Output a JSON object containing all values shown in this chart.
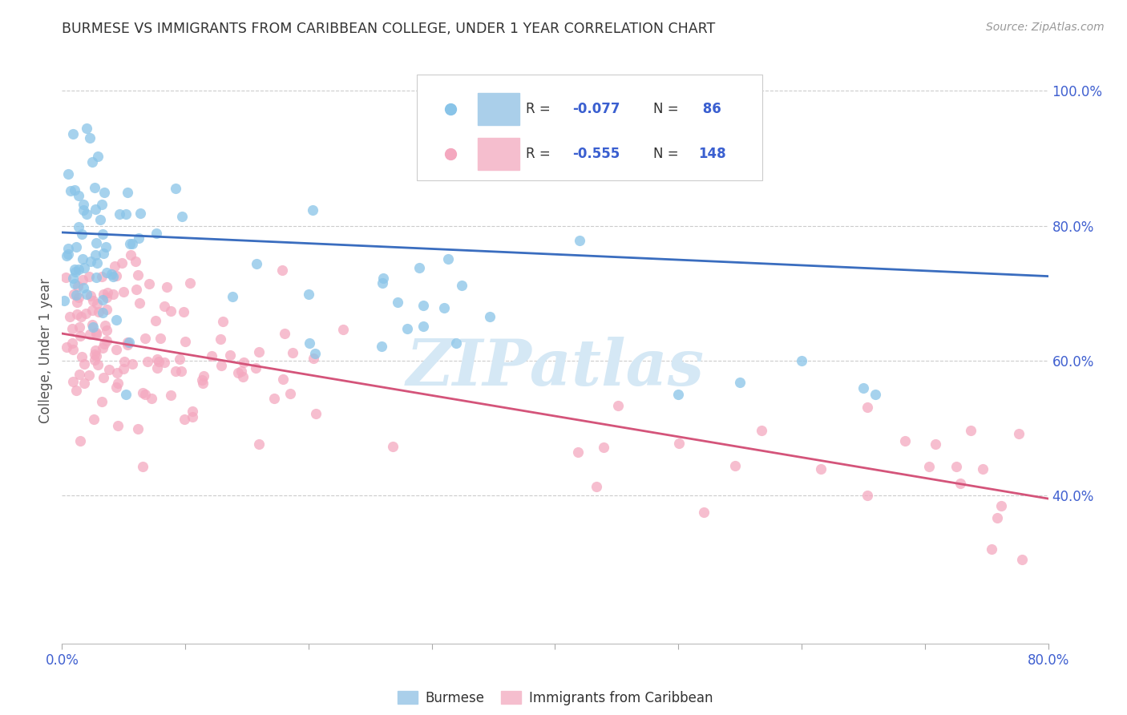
{
  "title": "BURMESE VS IMMIGRANTS FROM CARIBBEAN COLLEGE, UNDER 1 YEAR CORRELATION CHART",
  "source": "Source: ZipAtlas.com",
  "ylabel": "College, Under 1 year",
  "xlim": [
    0.0,
    0.8
  ],
  "ylim": [
    0.18,
    1.05
  ],
  "xtick_positions": [
    0.0,
    0.1,
    0.2,
    0.3,
    0.4,
    0.5,
    0.6,
    0.7,
    0.8
  ],
  "xticklabels": [
    "0.0%",
    "",
    "",
    "",
    "",
    "",
    "",
    "",
    "80.0%"
  ],
  "yticks_right": [
    0.4,
    0.6,
    0.8,
    1.0
  ],
  "yticklabels_right": [
    "40.0%",
    "60.0%",
    "80.0%",
    "100.0%"
  ],
  "blue_R": -0.077,
  "blue_N": 86,
  "pink_R": -0.555,
  "pink_N": 148,
  "blue_color": "#89c4e8",
  "pink_color": "#f4a8bf",
  "blue_line_color": "#3a6dbf",
  "pink_line_color": "#d4547a",
  "tick_color": "#4060d0",
  "title_color": "#333333",
  "source_color": "#999999",
  "ylabel_color": "#555555",
  "background_color": "#ffffff",
  "grid_color": "#cccccc",
  "watermark_color": "#d5e8f5",
  "legend_text_color": "#333333",
  "legend_value_color": "#3a5fd0",
  "blue_line_start_y": 0.79,
  "blue_line_end_y": 0.725,
  "pink_line_start_y": 0.64,
  "pink_line_end_y": 0.395
}
